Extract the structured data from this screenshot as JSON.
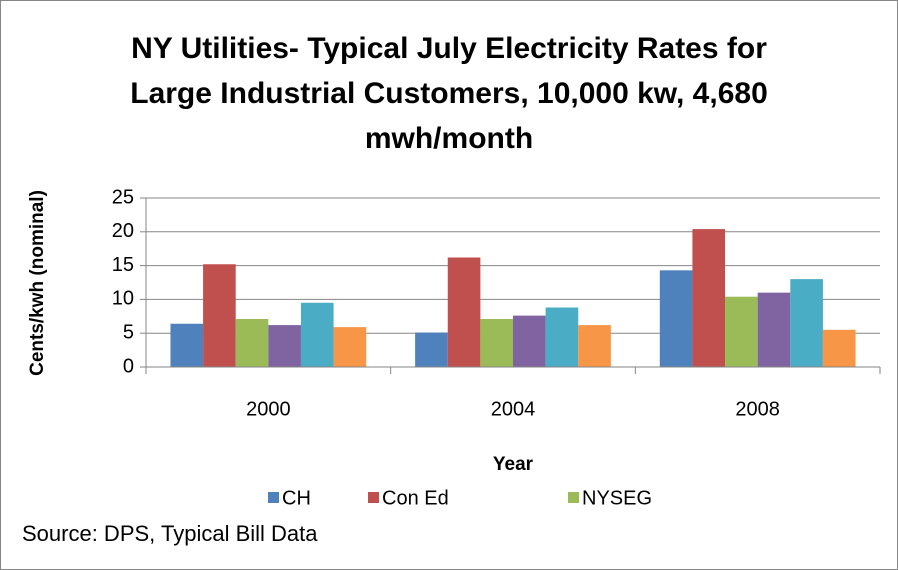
{
  "chart_data": {
    "type": "bar",
    "title": [
      "NY Utilities- Typical July Electricity Rates for",
      "Large Industrial Customers, 10,000 kw, 4,680",
      "mwh/month"
    ],
    "x_label": "Year",
    "y_label": "Cents/kwh (nominal)",
    "source": "Source: DPS, Typical Bill Data",
    "categories": [
      "2000",
      "2004",
      "2008"
    ],
    "series": [
      {
        "name": "CH",
        "color": "#4f81bd",
        "values": [
          6.4,
          5.1,
          14.3
        ]
      },
      {
        "name": "Con Ed",
        "color": "#c0504d",
        "values": [
          15.2,
          16.2,
          20.4
        ]
      },
      {
        "name": "NYSEG",
        "color": "#9bbb59",
        "values": [
          7.1,
          7.1,
          10.4
        ]
      },
      {
        "color": "#8064a2",
        "values": [
          6.2,
          7.6,
          11.0
        ]
      },
      {
        "color": "#4bacc6",
        "values": [
          9.5,
          8.8,
          13.0
        ]
      },
      {
        "color": "#f79646",
        "values": [
          5.9,
          6.2,
          5.5
        ]
      }
    ],
    "ylim": [
      0,
      25
    ],
    "yticks": [
      0,
      5,
      10,
      15,
      20,
      25
    ],
    "grid": true
  }
}
